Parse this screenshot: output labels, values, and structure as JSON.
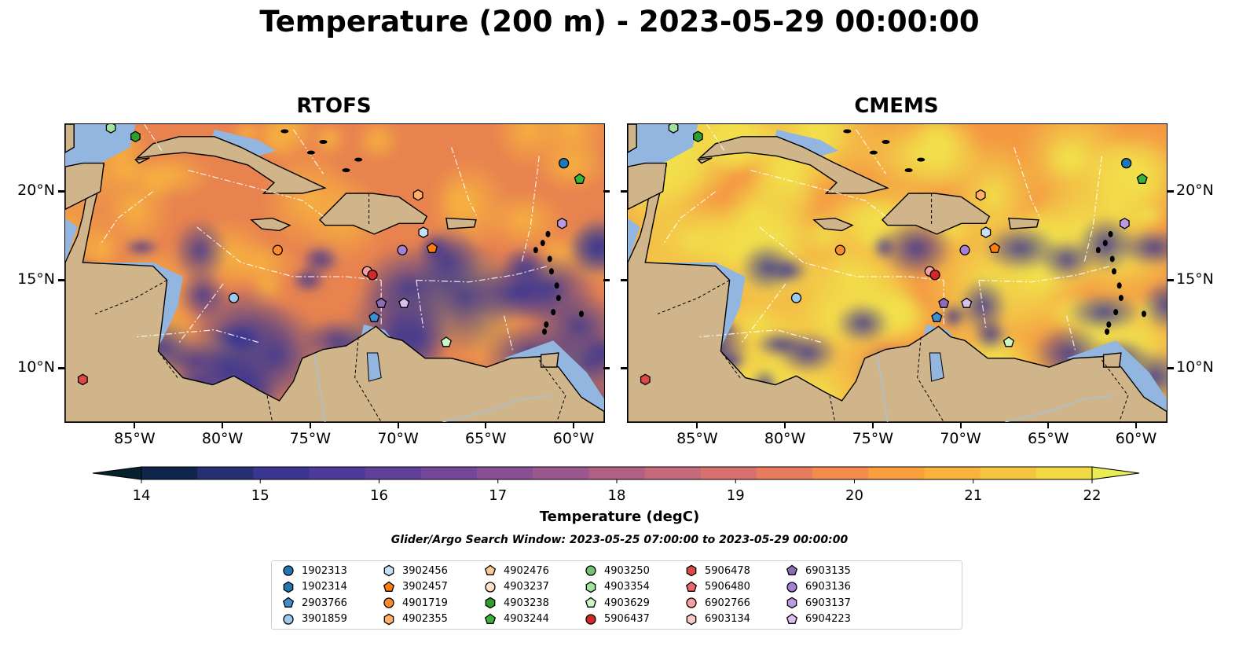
{
  "title": "Temperature (200 m) - 2023-05-29 00:00:00",
  "panels": [
    {
      "id": "rtofs",
      "title": "RTOFS"
    },
    {
      "id": "cmems",
      "title": "CMEMS"
    }
  ],
  "axes": {
    "x_ticks": [
      "85°W",
      "80°W",
      "75°W",
      "70°W",
      "65°W",
      "60°W"
    ],
    "y_ticks": [
      "20°N",
      "15°N",
      "10°N"
    ]
  },
  "colorbar": {
    "label": "Temperature (degC)",
    "ticks": [
      "14",
      "15",
      "16",
      "17",
      "18",
      "19",
      "20",
      "21",
      "22"
    ],
    "range": [
      14,
      22
    ],
    "extend": "both",
    "colormap": "thermal-like",
    "colors": [
      "#06202e",
      "#10254c",
      "#262f72",
      "#3a3592",
      "#4d3a9c",
      "#60409b",
      "#74479a",
      "#894f95",
      "#9d578f",
      "#b25f86",
      "#c5697b",
      "#d7716f",
      "#e77d5e",
      "#f48d4b",
      "#fa9f3d",
      "#fbb23c",
      "#f6c53f",
      "#f0d944",
      "#e9ec55"
    ]
  },
  "search_window": "Glider/Argo Search Window: 2023-05-25 07:00:00 to 2023-05-29 00:00:00",
  "legend": [
    {
      "label": "1902313",
      "marker": "circle",
      "color": "#1f77b4"
    },
    {
      "label": "1902314",
      "marker": "hexagon",
      "color": "#1f77b4"
    },
    {
      "label": "2903766",
      "marker": "pentagon",
      "color": "#3d8fd1"
    },
    {
      "label": "3901859",
      "marker": "circle",
      "color": "#9fc9ec"
    },
    {
      "label": "3902456",
      "marker": "hexagon",
      "color": "#c6e0f5"
    },
    {
      "label": "3902457",
      "marker": "pentagon",
      "color": "#ff7f0e"
    },
    {
      "label": "4901719",
      "marker": "circle",
      "color": "#ff8c2a"
    },
    {
      "label": "4902355",
      "marker": "hexagon",
      "color": "#ffb066"
    },
    {
      "label": "4902476",
      "marker": "pentagon",
      "color": "#ffc891"
    },
    {
      "label": "4903237",
      "marker": "circle",
      "color": "#ffe3c4"
    },
    {
      "label": "4903238",
      "marker": "hexagon",
      "color": "#2ca02c"
    },
    {
      "label": "4903244",
      "marker": "pentagon",
      "color": "#3bb33b"
    },
    {
      "label": "4903250",
      "marker": "circle",
      "color": "#74c476"
    },
    {
      "label": "4903354",
      "marker": "hexagon",
      "color": "#a1e29c"
    },
    {
      "label": "4903629",
      "marker": "pentagon",
      "color": "#ccf5c4"
    },
    {
      "label": "5906437",
      "marker": "circle",
      "color": "#d62728"
    },
    {
      "label": "5906478",
      "marker": "hexagon",
      "color": "#e04848"
    },
    {
      "label": "5906480",
      "marker": "pentagon",
      "color": "#ea6a6a"
    },
    {
      "label": "6902766",
      "marker": "circle",
      "color": "#f4a0a0"
    },
    {
      "label": "6903134",
      "marker": "hexagon",
      "color": "#f9c8c8"
    },
    {
      "label": "6903135",
      "marker": "pentagon",
      "color": "#8e6bb8"
    },
    {
      "label": "6903136",
      "marker": "circle",
      "color": "#a67fd6"
    },
    {
      "label": "6903137",
      "marker": "hexagon",
      "color": "#bc9ae0"
    },
    {
      "label": "6904223",
      "marker": "pentagon",
      "color": "#d8c0f0"
    }
  ],
  "floats_on_map": [
    {
      "id": "4903354",
      "lon": -86.4,
      "lat": 23.6
    },
    {
      "id": "4903238",
      "lon": -85.0,
      "lat": 23.1
    },
    {
      "id": "1902313",
      "lon": -60.6,
      "lat": 21.6
    },
    {
      "id": "4903244",
      "lon": -59.7,
      "lat": 20.7
    },
    {
      "id": "4902355",
      "lon": -68.9,
      "lat": 19.8
    },
    {
      "id": "6903137",
      "lon": -60.7,
      "lat": 18.2
    },
    {
      "id": "3902456",
      "lon": -68.6,
      "lat": 17.7
    },
    {
      "id": "3902457",
      "lon": -68.1,
      "lat": 16.8
    },
    {
      "id": "4901719",
      "lon": -76.9,
      "lat": 16.7
    },
    {
      "id": "6903136",
      "lon": -69.8,
      "lat": 16.7
    },
    {
      "id": "6902766",
      "lon": -71.8,
      "lat": 15.5
    },
    {
      "id": "5906437",
      "lon": -71.5,
      "lat": 15.3
    },
    {
      "id": "3901859",
      "lon": -79.4,
      "lat": 14.0
    },
    {
      "id": "6903135",
      "lon": -71.0,
      "lat": 13.7
    },
    {
      "id": "6904223",
      "lon": -69.7,
      "lat": 13.7
    },
    {
      "id": "2903766",
      "lon": -71.4,
      "lat": 12.9
    },
    {
      "id": "4903629",
      "lon": -67.3,
      "lat": 11.5
    },
    {
      "id": "5906478",
      "lon": -88.0,
      "lat": 9.4
    }
  ],
  "map_extent": {
    "lon": [
      -89.0,
      -58.3
    ],
    "lat": [
      7.0,
      23.8
    ]
  }
}
